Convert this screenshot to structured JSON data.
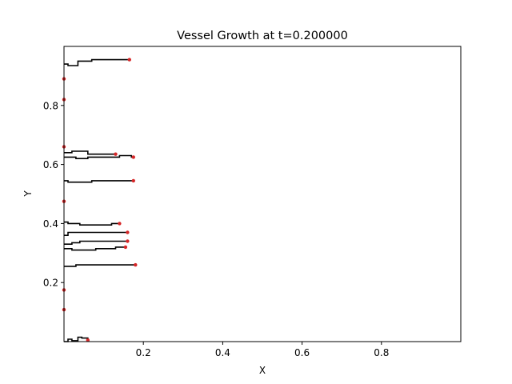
{
  "chart_data": {
    "type": "line",
    "title": "Vessel Growth at t=0.200000",
    "xlabel": "X",
    "ylabel": "Y",
    "xlim": [
      0.0,
      1.0
    ],
    "ylim": [
      0.0,
      1.0
    ],
    "xticks": [
      {
        "value": 0.2,
        "label": "0.2"
      },
      {
        "value": 0.4,
        "label": "0.4"
      },
      {
        "value": 0.6,
        "label": "0.6"
      },
      {
        "value": 0.8,
        "label": "0.8"
      }
    ],
    "yticks": [
      {
        "value": 0.2,
        "label": "0.2"
      },
      {
        "value": 0.4,
        "label": "0.4"
      },
      {
        "value": 0.6,
        "label": "0.6"
      },
      {
        "value": 0.8,
        "label": "0.8"
      }
    ],
    "grid": false,
    "colors": {
      "vessel": "#000000",
      "tip": "#d62728"
    },
    "series": [
      {
        "x": [
          0.0,
          0.01,
          0.01,
          0.035,
          0.035,
          0.07,
          0.07,
          0.165
        ],
        "y": [
          0.94,
          0.94,
          0.935,
          0.935,
          0.95,
          0.95,
          0.955,
          0.955
        ]
      },
      {
        "x": [
          0.0,
          0.02,
          0.02,
          0.06,
          0.06,
          0.13
        ],
        "y": [
          0.64,
          0.64,
          0.645,
          0.645,
          0.635,
          0.635
        ]
      },
      {
        "x": [
          0.0,
          0.03,
          0.03,
          0.06,
          0.06,
          0.14,
          0.14,
          0.17,
          0.17,
          0.175
        ],
        "y": [
          0.625,
          0.625,
          0.62,
          0.62,
          0.625,
          0.625,
          0.63,
          0.63,
          0.625,
          0.625
        ]
      },
      {
        "x": [
          0.0,
          0.01,
          0.01,
          0.07,
          0.07,
          0.175
        ],
        "y": [
          0.545,
          0.545,
          0.54,
          0.54,
          0.545,
          0.545
        ]
      },
      {
        "x": [
          0.0,
          0.01,
          0.01,
          0.04,
          0.04,
          0.12,
          0.12,
          0.14
        ],
        "y": [
          0.405,
          0.405,
          0.4,
          0.4,
          0.395,
          0.395,
          0.4,
          0.4
        ]
      },
      {
        "x": [
          0.0,
          0.01,
          0.01,
          0.16
        ],
        "y": [
          0.36,
          0.36,
          0.37,
          0.37
        ]
      },
      {
        "x": [
          0.0,
          0.02,
          0.02,
          0.04,
          0.04,
          0.16
        ],
        "y": [
          0.33,
          0.33,
          0.335,
          0.335,
          0.34,
          0.34
        ]
      },
      {
        "x": [
          0.0,
          0.02,
          0.02,
          0.08,
          0.08,
          0.13,
          0.13,
          0.155
        ],
        "y": [
          0.315,
          0.315,
          0.31,
          0.31,
          0.315,
          0.315,
          0.32,
          0.32
        ]
      },
      {
        "x": [
          0.0,
          0.03,
          0.03,
          0.18
        ],
        "y": [
          0.255,
          0.255,
          0.26,
          0.26
        ]
      },
      {
        "x": [
          0.0,
          0.01,
          0.01,
          0.02,
          0.02,
          0.035,
          0.035,
          0.045,
          0.045,
          0.06,
          0.06
        ],
        "y": [
          0.0,
          0.0,
          0.008,
          0.008,
          0.003,
          0.003,
          0.015,
          0.015,
          0.012,
          0.012,
          0.005
        ]
      }
    ],
    "tips": [
      {
        "x": 0.165,
        "y": 0.955
      },
      {
        "x": 0.0,
        "y": 0.89
      },
      {
        "x": 0.0,
        "y": 0.82
      },
      {
        "x": 0.0,
        "y": 0.66
      },
      {
        "x": 0.13,
        "y": 0.635
      },
      {
        "x": 0.175,
        "y": 0.625
      },
      {
        "x": 0.175,
        "y": 0.545
      },
      {
        "x": 0.0,
        "y": 0.475
      },
      {
        "x": 0.14,
        "y": 0.4
      },
      {
        "x": 0.16,
        "y": 0.37
      },
      {
        "x": 0.16,
        "y": 0.34
      },
      {
        "x": 0.155,
        "y": 0.32
      },
      {
        "x": 0.18,
        "y": 0.26
      },
      {
        "x": 0.0,
        "y": 0.175
      },
      {
        "x": 0.0,
        "y": 0.108
      },
      {
        "x": 0.06,
        "y": 0.005
      }
    ]
  }
}
